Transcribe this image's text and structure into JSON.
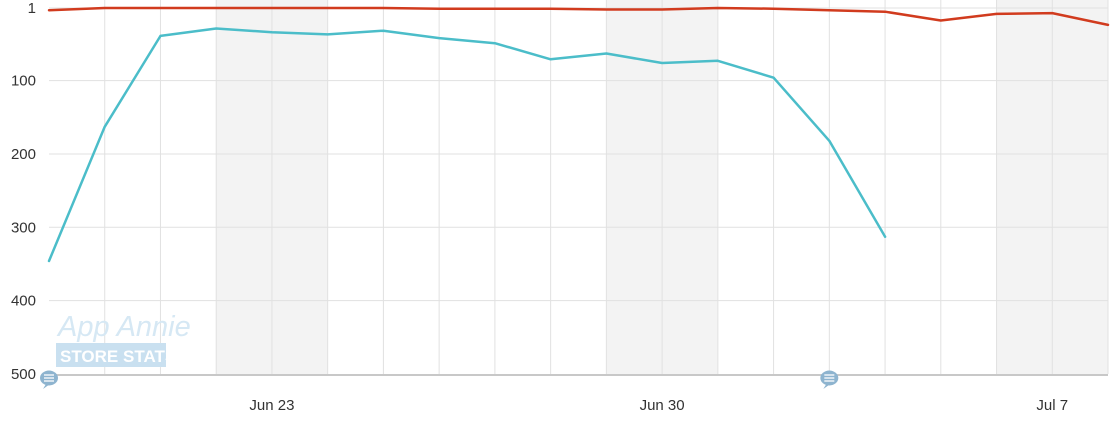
{
  "watermark": {
    "line1": "App Annie",
    "line2": "STORE STATS"
  },
  "colors": {
    "series_red": "#d13b1e",
    "series_teal": "#4bbdc9",
    "weekend_band": "#f3f3f3",
    "grid": "#e1e1e1",
    "axis": "#c8c8c8",
    "event_marker": "#8eb4cf",
    "watermark_box": "#c9e0f0"
  },
  "chart_data": {
    "type": "line",
    "title": "",
    "xlabel": "",
    "ylabel": "",
    "y_reversed": true,
    "ylim": [
      1,
      500
    ],
    "yticks": [
      1,
      100,
      200,
      300,
      400,
      500
    ],
    "x": [
      "Jun 19",
      "Jun 20",
      "Jun 21",
      "Jun 22",
      "Jun 23",
      "Jun 24",
      "Jun 25",
      "Jun 26",
      "Jun 27",
      "Jun 28",
      "Jun 29",
      "Jun 30",
      "Jul 1",
      "Jul 2",
      "Jul 3",
      "Jul 4",
      "Jul 5",
      "Jul 6",
      "Jul 7",
      "Jul 8"
    ],
    "x_tick_labels": [
      {
        "index": 4,
        "label": "Jun 23"
      },
      {
        "index": 11,
        "label": "Jun 30"
      },
      {
        "index": 18,
        "label": "Jul 7"
      }
    ],
    "weekend_bands": [
      [
        3,
        5
      ],
      [
        10,
        12
      ],
      [
        17,
        19
      ]
    ],
    "series": [
      {
        "color": "#d13b1e",
        "values": [
          4,
          1,
          1,
          1,
          1,
          1,
          1,
          2,
          2,
          2,
          3,
          3,
          1,
          2,
          4,
          6,
          18,
          9,
          8,
          24
        ]
      },
      {
        "color": "#4bbdc9",
        "values": [
          346,
          163,
          39,
          29,
          34,
          37,
          32,
          42,
          49,
          71,
          63,
          76,
          73,
          96,
          182,
          313,
          null,
          null,
          null,
          null
        ]
      }
    ],
    "event_markers": [
      0,
      14
    ],
    "grid": true,
    "legend": "none"
  }
}
